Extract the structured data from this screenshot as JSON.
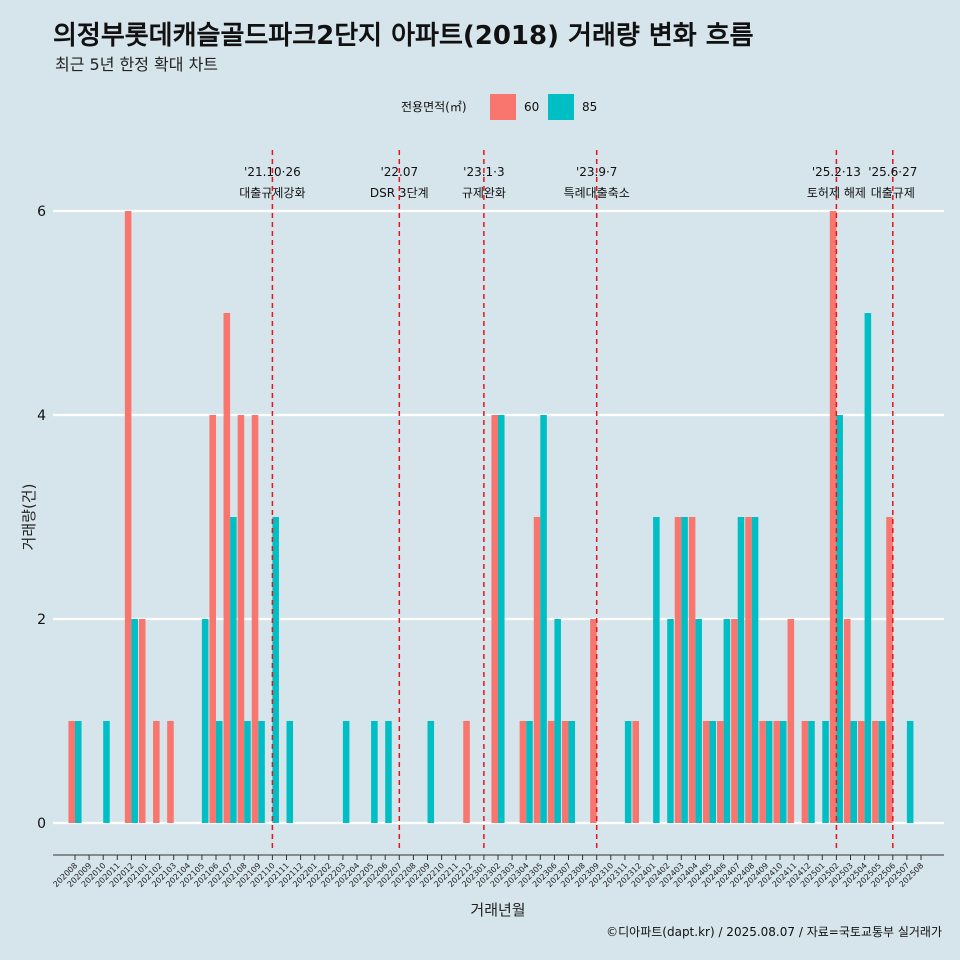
{
  "chart_data": {
    "type": "bar",
    "title": "의정부롯데캐슬골드파크2단지 아파트(2018) 거래량 변화 흐름",
    "subtitle": "최근 5년 한정 확대 차트",
    "xlabel": "거래년월",
    "ylabel": "거래량(건)",
    "ylim": [
      0,
      6
    ],
    "yticks": [
      0,
      2,
      4,
      6
    ],
    "legend_title": "전용면적(㎡)",
    "caption": "©디아파트(dapt.kr) / 2025.08.07 / 자료=국토교통부 실거래가",
    "categories": [
      "202008",
      "202009",
      "202010",
      "202011",
      "202012",
      "202101",
      "202102",
      "202103",
      "202104",
      "202105",
      "202106",
      "202107",
      "202108",
      "202109",
      "202110",
      "202111",
      "202112",
      "202201",
      "202202",
      "202203",
      "202204",
      "202205",
      "202206",
      "202207",
      "202208",
      "202209",
      "202210",
      "202211",
      "202212",
      "202301",
      "202302",
      "202303",
      "202304",
      "202305",
      "202306",
      "202307",
      "202308",
      "202309",
      "202310",
      "202311",
      "202312",
      "202401",
      "202402",
      "202403",
      "202404",
      "202405",
      "202406",
      "202407",
      "202408",
      "202409",
      "202410",
      "202411",
      "202412",
      "202501",
      "202502",
      "202503",
      "202504",
      "202505",
      "202506",
      "202507",
      "202508"
    ],
    "series": [
      {
        "name": "60",
        "color": "#f8766d",
        "values": [
          1,
          0,
          0,
          0,
          6,
          2,
          1,
          1,
          0,
          0,
          4,
          5,
          4,
          4,
          0,
          0,
          0,
          0,
          0,
          0,
          0,
          0,
          0,
          0,
          0,
          0,
          0,
          0,
          1,
          0,
          4,
          0,
          1,
          3,
          1,
          1,
          0,
          2,
          0,
          0,
          1,
          0,
          0,
          3,
          3,
          1,
          1,
          2,
          3,
          1,
          1,
          2,
          1,
          0,
          6,
          2,
          1,
          1,
          3,
          0,
          0
        ]
      },
      {
        "name": "85",
        "color": "#00bfc4",
        "values": [
          1,
          0,
          1,
          0,
          2,
          0,
          0,
          0,
          0,
          2,
          1,
          3,
          1,
          1,
          3,
          1,
          0,
          0,
          0,
          1,
          0,
          1,
          1,
          0,
          0,
          1,
          0,
          0,
          0,
          0,
          4,
          0,
          1,
          4,
          2,
          1,
          0,
          0,
          0,
          1,
          0,
          3,
          2,
          3,
          2,
          1,
          2,
          3,
          3,
          1,
          1,
          0,
          1,
          1,
          4,
          1,
          5,
          1,
          0,
          1,
          0
        ]
      }
    ],
    "annotations": [
      {
        "category": "202110",
        "date": "'21.10·26",
        "label": "대출규제강화"
      },
      {
        "category": "202207",
        "date": "'22.07",
        "label": "DSR 3단계"
      },
      {
        "category": "202301",
        "date": "'23.1·3",
        "label": "규제완화"
      },
      {
        "category": "202309",
        "date": "'23.9·7",
        "label": "특례대출축소"
      },
      {
        "category": "202502",
        "date": "'25.2·13",
        "label": "토허제 해제"
      },
      {
        "category": "202506",
        "date": "'25.6·27",
        "label": "대출규제"
      }
    ]
  }
}
